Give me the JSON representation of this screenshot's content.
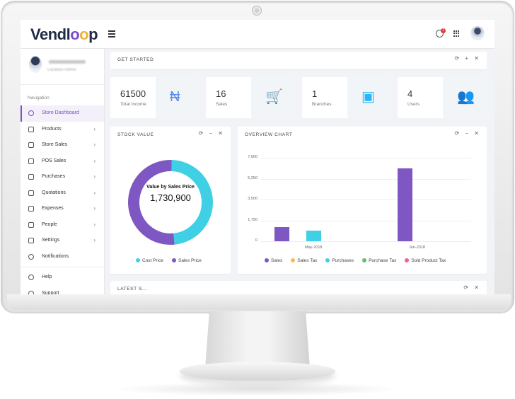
{
  "brand": {
    "logo_text_prefix": "Vendl",
    "logo_o1": "o",
    "logo_o2": "o",
    "logo_text_suffix": "p",
    "accent": "#7b4fc8"
  },
  "topbar": {
    "notification_count": "1",
    "icons": [
      "menu-icon",
      "clock-icon",
      "apps-grid-icon",
      "user-avatar"
    ]
  },
  "sidebar": {
    "user_role": "Location Admin",
    "nav_title": "Navigation",
    "items": [
      {
        "label": "Store Dashboard",
        "icon": "dashboard-icon",
        "active": true,
        "chevron": ""
      },
      {
        "label": "Products",
        "icon": "box-icon",
        "chevron": "›"
      },
      {
        "label": "Store Sales",
        "icon": "cart-icon",
        "chevron": "›"
      },
      {
        "label": "POS Sales",
        "icon": "monitor-icon",
        "chevron": "›"
      },
      {
        "label": "Purchases",
        "icon": "bag-icon",
        "chevron": "›"
      },
      {
        "label": "Quotations",
        "icon": "edit-icon",
        "chevron": "›"
      },
      {
        "label": "Expenses",
        "icon": "folder-icon",
        "chevron": "›"
      },
      {
        "label": "People",
        "icon": "person-icon",
        "chevron": "›"
      },
      {
        "label": "Settings",
        "icon": "gear-icon",
        "chevron": "›"
      },
      {
        "label": "Notifications",
        "icon": "bell-icon",
        "chevron": ""
      }
    ],
    "bottom_items": [
      {
        "label": "Help",
        "icon": "help-icon"
      },
      {
        "label": "Support",
        "icon": "lifebuoy-icon"
      }
    ]
  },
  "get_started": {
    "title": "GET STARTED",
    "tools": "⟳ + ✕"
  },
  "stats": [
    {
      "value": "61500",
      "label": "Total Income",
      "icon": "naira-icon",
      "glyph": "₦",
      "color": "#5b8def"
    },
    {
      "value": "16",
      "label": "Sales",
      "icon": "cart-plus-icon",
      "glyph": "🛒",
      "color": "#e84d8a"
    },
    {
      "value": "1",
      "label": "Branches",
      "icon": "store-icon",
      "glyph": "▣",
      "color": "#29b6f6"
    },
    {
      "value": "4",
      "label": "Users",
      "icon": "users-icon",
      "glyph": "👥",
      "color": "#26a69a"
    }
  ],
  "stock_value": {
    "title": "STOCK VALUE",
    "tools": "⟳ − ✕",
    "center_label": "Value by Sales Price",
    "center_value": "1,730,900"
  },
  "overview": {
    "title": "OVERVIEW CHART",
    "tools": "⟳ − ✕"
  },
  "bottom_card": {
    "title": "LATEST S...",
    "tools": "⟳ ✕"
  },
  "chart_data": [
    {
      "type": "pie",
      "title": "",
      "labels": [
        "Cost Price",
        "Sales Price"
      ],
      "colors": [
        "#3fd0e6",
        "#7e57c2"
      ],
      "values": [
        48,
        52
      ]
    },
    {
      "type": "bar",
      "title": "",
      "x_ticks": [
        "May-2018",
        "Jun-2018"
      ],
      "yticks": [
        "7,000",
        "5,250",
        "3,500",
        "1,750",
        "0"
      ],
      "ylim": [
        0,
        7000
      ],
      "grid": true,
      "legend_placement": "bottom",
      "series": [
        {
          "name": "Sales",
          "color": "#7e57c2",
          "values": [
            1200,
            6100
          ]
        },
        {
          "name": "Sales Tax",
          "color": "#ffb74d",
          "values": [
            0,
            0
          ]
        },
        {
          "name": "Purchases",
          "color": "#3fd0e6",
          "values": [
            900,
            0
          ]
        },
        {
          "name": "Purchase Tax",
          "color": "#66bb6a",
          "values": [
            0,
            0
          ]
        },
        {
          "name": "Sold Product Tax",
          "color": "#f06292",
          "values": [
            0,
            0
          ]
        }
      ]
    }
  ]
}
